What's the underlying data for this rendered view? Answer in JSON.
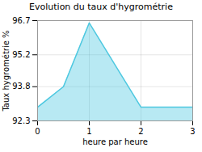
{
  "chart_data": {
    "type": "area",
    "title": "Evolution du taux d'hygrométrie",
    "xlabel": "heure par heure",
    "ylabel": "Taux hygrométrie %",
    "x": [
      0,
      0.5,
      1,
      2,
      3
    ],
    "values": [
      92.9,
      93.8,
      96.6,
      92.9,
      92.9
    ],
    "color": "#4dc8e0",
    "xlim": [
      0,
      3
    ],
    "ylim": [
      92.3,
      96.7
    ],
    "xticks": [
      0,
      1,
      2,
      3
    ],
    "yticks": [
      92.3,
      93.8,
      95.2,
      96.7
    ],
    "grid": true
  }
}
